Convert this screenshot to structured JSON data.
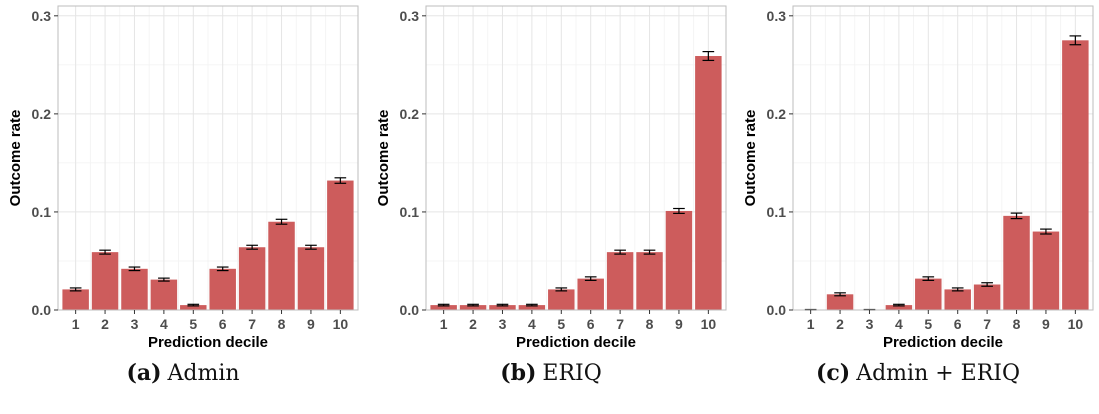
{
  "colors": {
    "bar": "#cd5c5c",
    "error_bar": "#000000",
    "grid_major": "#e5e5e5",
    "grid_minor": "#f2f2f2",
    "panel_border": "#bdbdbd"
  },
  "chart_data": [
    {
      "type": "bar",
      "caption_letter": "(a)",
      "caption_text": "Admin",
      "xlabel": "Prediction decile",
      "ylabel": "Outcome rate",
      "ylim": [
        0,
        0.31
      ],
      "yticks": [
        0.0,
        0.1,
        0.2,
        0.3
      ],
      "ytick_labels": [
        "0.0",
        "0.1",
        "0.2",
        "0.3"
      ],
      "grid": true,
      "categories": [
        "1",
        "2",
        "3",
        "4",
        "5",
        "6",
        "7",
        "8",
        "9",
        "10"
      ],
      "values": [
        0.021,
        0.059,
        0.042,
        0.031,
        0.005,
        0.042,
        0.064,
        0.09,
        0.064,
        0.132
      ],
      "errors": [
        0.0015,
        0.002,
        0.0018,
        0.0015,
        0.0008,
        0.0018,
        0.002,
        0.0025,
        0.002,
        0.0028
      ]
    },
    {
      "type": "bar",
      "caption_letter": "(b)",
      "caption_text": "ERIQ",
      "xlabel": "Prediction decile",
      "ylabel": "Outcome rate",
      "ylim": [
        0,
        0.31
      ],
      "yticks": [
        0.0,
        0.1,
        0.2,
        0.3
      ],
      "ytick_labels": [
        "0.0",
        "0.1",
        "0.2",
        "0.3"
      ],
      "grid": true,
      "categories": [
        "1",
        "2",
        "3",
        "4",
        "5",
        "6",
        "7",
        "8",
        "9",
        "10"
      ],
      "values": [
        0.005,
        0.005,
        0.005,
        0.005,
        0.021,
        0.032,
        0.059,
        0.059,
        0.101,
        0.259
      ],
      "errors": [
        0.0008,
        0.0008,
        0.0008,
        0.0008,
        0.0015,
        0.0018,
        0.002,
        0.002,
        0.0025,
        0.0045
      ]
    },
    {
      "type": "bar",
      "caption_letter": "(c)",
      "caption_text": "Admin + ERIQ",
      "xlabel": "Prediction decile",
      "ylabel": "Outcome rate",
      "ylim": [
        0,
        0.31
      ],
      "yticks": [
        0.0,
        0.1,
        0.2,
        0.3
      ],
      "ytick_labels": [
        "0.0",
        "0.1",
        "0.2",
        "0.3"
      ],
      "grid": true,
      "categories": [
        "1",
        "2",
        "3",
        "4",
        "5",
        "6",
        "7",
        "8",
        "9",
        "10"
      ],
      "values": [
        0.0,
        0.016,
        0.0,
        0.005,
        0.032,
        0.021,
        0.026,
        0.096,
        0.08,
        0.275
      ],
      "errors": [
        0.0005,
        0.0015,
        0.0005,
        0.0008,
        0.0018,
        0.0015,
        0.0018,
        0.0028,
        0.0025,
        0.0045
      ]
    }
  ]
}
